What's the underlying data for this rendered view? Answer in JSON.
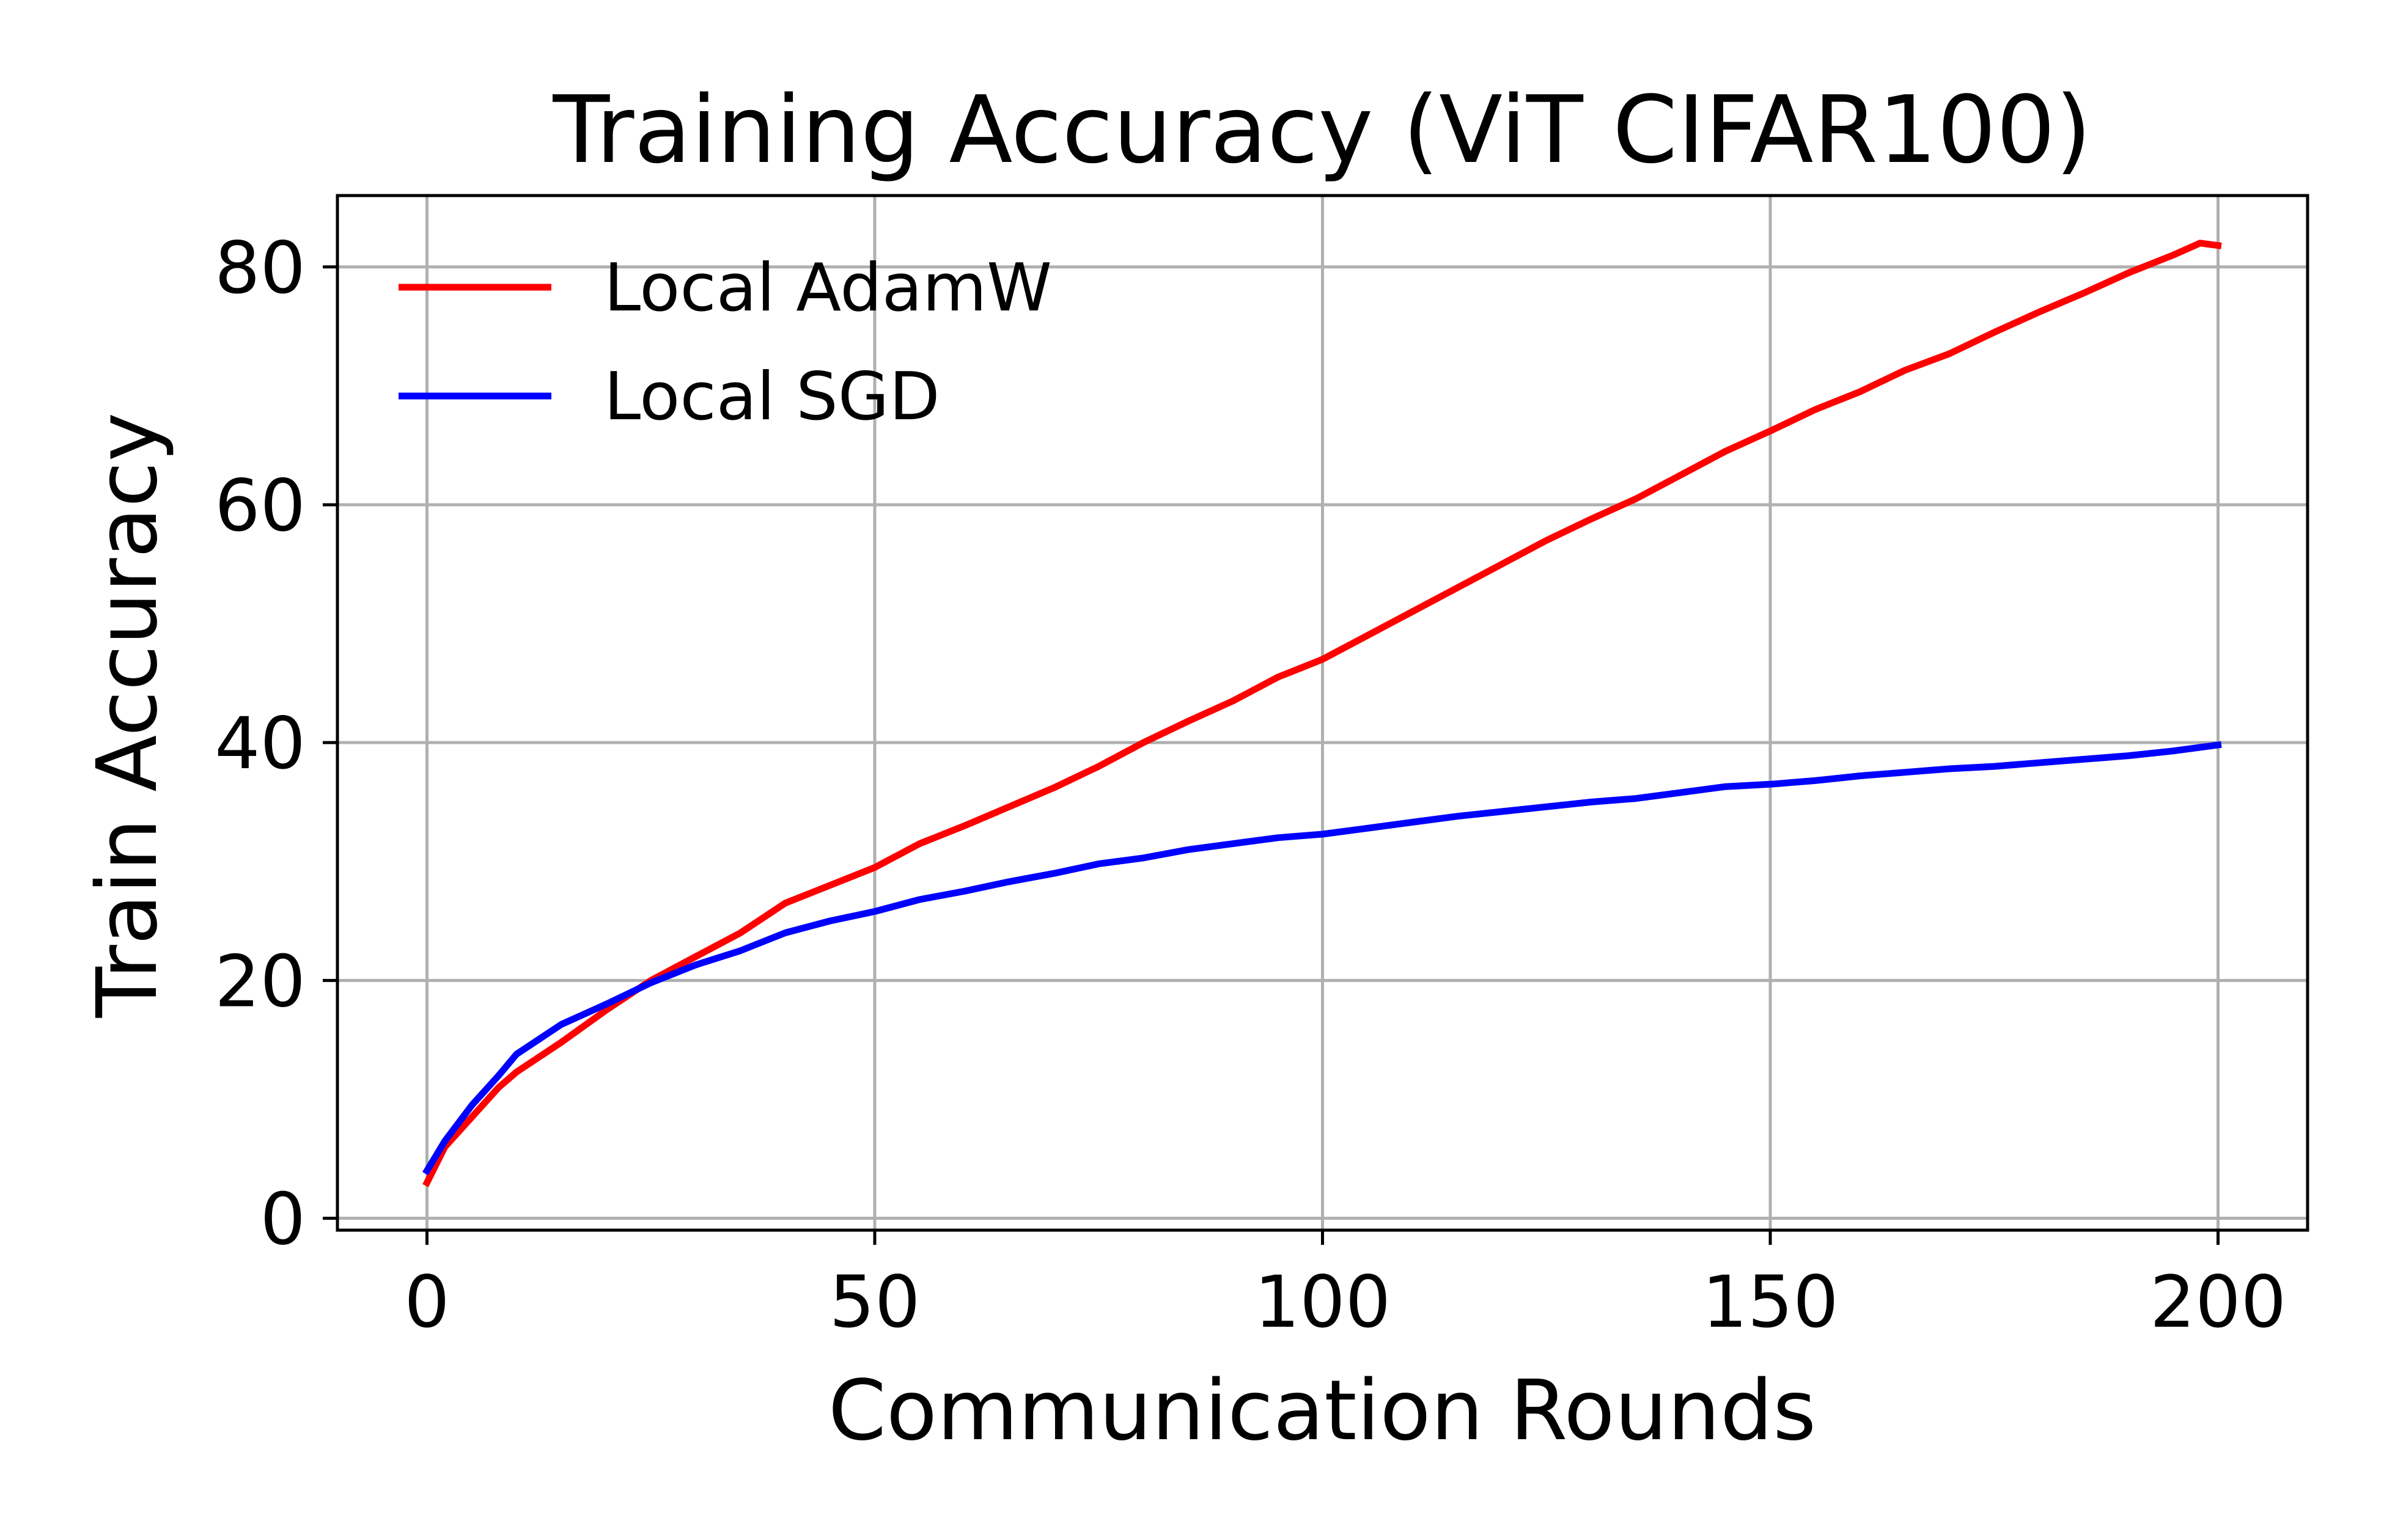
{
  "chart_data": {
    "type": "line",
    "title": "Training Accuracy (ViT CIFAR100)",
    "xlabel": "Communication Rounds",
    "ylabel": "Train Accuracy",
    "xlim": [
      -10,
      210
    ],
    "ylim": [
      -1,
      86
    ],
    "xticks": [
      0,
      50,
      100,
      150,
      200
    ],
    "yticks": [
      0,
      20,
      40,
      60,
      80
    ],
    "xtick_labels": [
      "0",
      "50",
      "100",
      "150",
      "200"
    ],
    "ytick_labels": [
      "0",
      "20",
      "40",
      "60",
      "80"
    ],
    "grid": true,
    "legend_position": "upper-left",
    "series": [
      {
        "name": "Local AdamW",
        "color": "#ff0000",
        "x": [
          0,
          2,
          5,
          8,
          10,
          15,
          20,
          25,
          30,
          35,
          40,
          45,
          50,
          55,
          60,
          65,
          70,
          75,
          80,
          85,
          90,
          95,
          100,
          105,
          110,
          115,
          120,
          125,
          130,
          135,
          140,
          145,
          150,
          155,
          160,
          165,
          170,
          175,
          180,
          185,
          190,
          195,
          198,
          200
        ],
        "y": [
          3,
          6,
          8.5,
          11,
          12.3,
          14.8,
          17.5,
          20,
          22,
          24,
          26.5,
          28,
          29.5,
          31.5,
          33,
          34.6,
          36.2,
          38,
          40,
          41.8,
          43.5,
          45.5,
          47,
          49,
          51,
          53,
          55,
          57,
          58.8,
          60.5,
          62.5,
          64.5,
          66.2,
          68,
          69.5,
          71.3,
          72.7,
          74.5,
          76.2,
          77.8,
          79.5,
          81,
          82,
          81.8
        ]
      },
      {
        "name": "Local SGD",
        "color": "#0000ff",
        "x": [
          0,
          2,
          5,
          8,
          10,
          15,
          20,
          25,
          30,
          35,
          40,
          45,
          50,
          55,
          60,
          65,
          70,
          75,
          80,
          85,
          90,
          95,
          100,
          105,
          110,
          115,
          120,
          125,
          130,
          135,
          140,
          145,
          150,
          155,
          160,
          165,
          170,
          175,
          180,
          185,
          190,
          195,
          200
        ],
        "y": [
          4,
          6.5,
          9.5,
          12,
          13.8,
          16.3,
          18,
          19.8,
          21.3,
          22.5,
          24,
          25,
          25.8,
          26.8,
          27.5,
          28.3,
          29,
          29.8,
          30.3,
          31,
          31.5,
          32,
          32.3,
          32.8,
          33.3,
          33.8,
          34.2,
          34.6,
          35,
          35.3,
          35.8,
          36.3,
          36.5,
          36.8,
          37.2,
          37.5,
          37.8,
          38,
          38.3,
          38.6,
          38.9,
          39.3,
          39.8
        ]
      }
    ]
  }
}
